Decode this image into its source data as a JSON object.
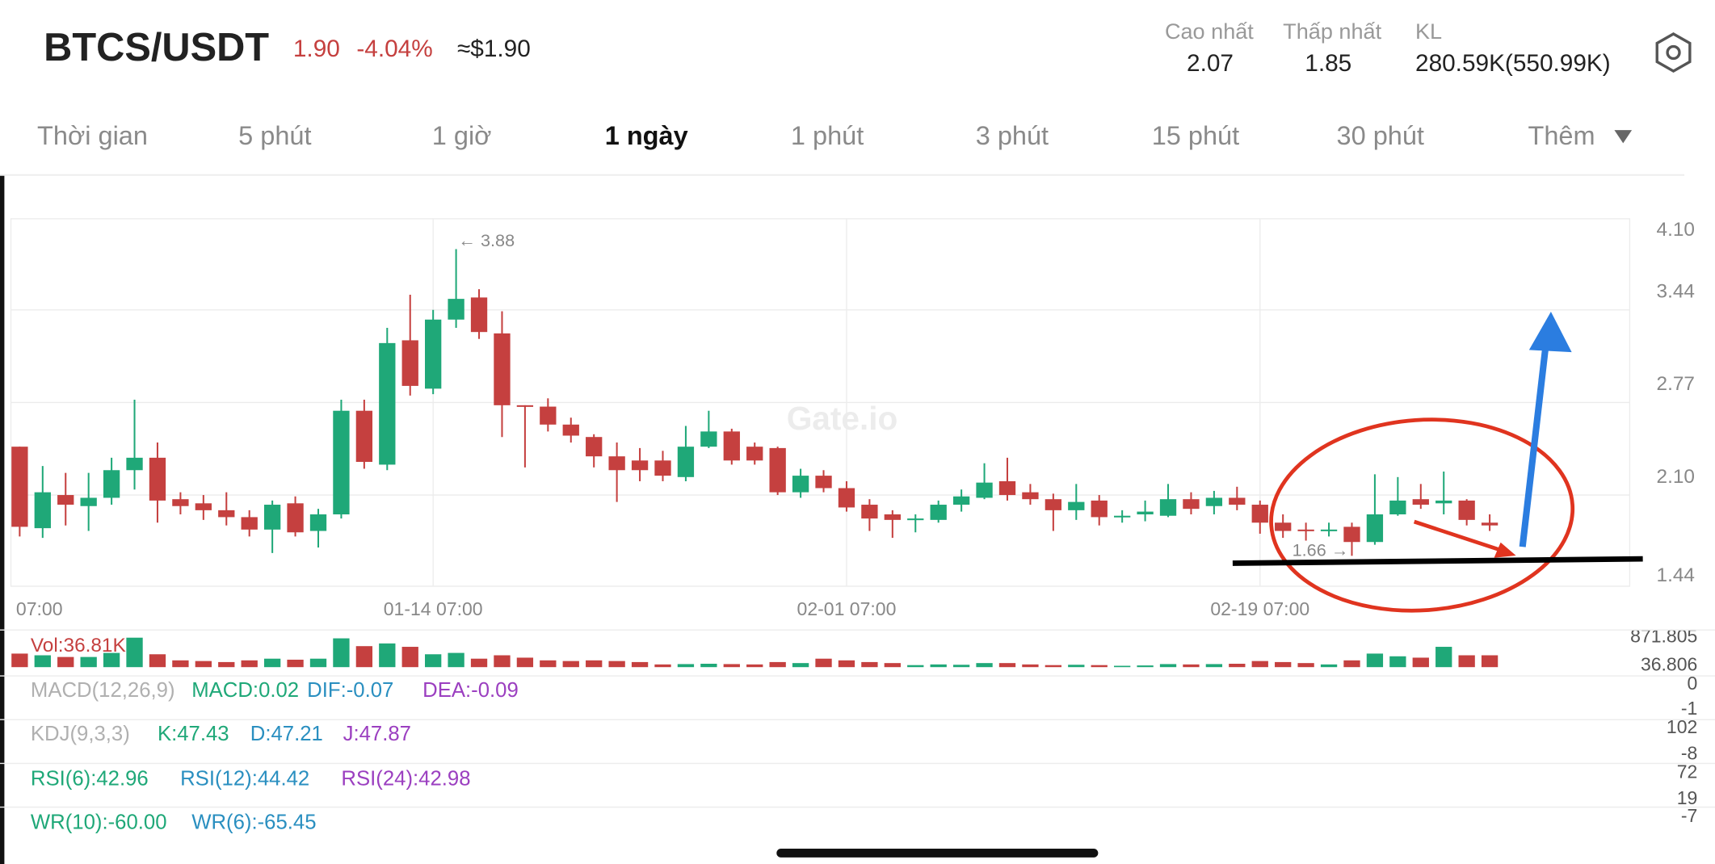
{
  "header": {
    "pair": "BTCS/USDT",
    "price": "1.90",
    "change": "-4.04%",
    "usd_price": "≈$1.90"
  },
  "stats": [
    {
      "label": "Cao nhất",
      "value": "2.07"
    },
    {
      "label": "Thấp nhất",
      "value": "1.85"
    },
    {
      "label": "KL",
      "value": "280.59K(550.99K)"
    }
  ],
  "tabs": [
    "Thời gian",
    "5 phút",
    "1 giờ",
    "1 ngày",
    "1 phút",
    "3 phút",
    "15 phút",
    "30 phút",
    "Thêm"
  ],
  "active_tab": 3,
  "watermark": "Gate.io",
  "chart_data": {
    "type": "candlestick",
    "up_color": "#1fa878",
    "down_color": "#c5403f",
    "categories": [
      "07:00",
      null,
      null,
      null,
      null,
      null,
      null,
      null,
      null,
      null,
      null,
      null,
      null,
      null,
      null,
      null,
      null,
      null,
      "01-14 07:00",
      null,
      null,
      null,
      null,
      null,
      null,
      null,
      null,
      null,
      null,
      null,
      null,
      null,
      null,
      null,
      null,
      null,
      "02-01 07:00",
      null,
      null,
      null,
      null,
      null,
      null,
      null,
      null,
      null,
      null,
      null,
      null,
      null,
      null,
      null,
      null,
      null,
      "02-19 07:00",
      null,
      null,
      null,
      null,
      null,
      null,
      null,
      null,
      null,
      null
    ],
    "open": [
      2.45,
      1.86,
      2.1,
      2.02,
      2.08,
      2.28,
      2.37,
      2.07,
      2.04,
      1.99,
      1.94,
      1.85,
      2.04,
      1.84,
      1.96,
      2.71,
      2.32,
      3.22,
      2.87,
      3.37,
      3.53,
      3.27,
      2.75,
      2.74,
      2.61,
      2.52,
      2.38,
      2.35,
      2.35,
      2.23,
      2.45,
      2.56,
      2.45,
      2.44,
      2.12,
      2.24,
      2.15,
      2.03,
      1.96,
      1.92,
      1.92,
      2.03,
      2.08,
      2.2,
      2.12,
      2.07,
      1.99,
      2.06,
      1.94,
      1.96,
      1.95,
      2.07,
      2.02,
      2.08,
      2.03,
      1.9,
      1.85,
      1.84,
      1.87,
      1.76,
      1.96,
      2.07,
      2.04,
      2.06,
      1.9
    ],
    "high": [
      2.45,
      2.31,
      2.26,
      2.26,
      2.37,
      2.79,
      2.48,
      2.12,
      2.1,
      2.12,
      1.99,
      2.06,
      2.09,
      2.0,
      2.79,
      2.79,
      3.31,
      3.55,
      3.44,
      3.88,
      3.59,
      3.43,
      2.75,
      2.8,
      2.66,
      2.54,
      2.48,
      2.44,
      2.42,
      2.6,
      2.71,
      2.58,
      2.48,
      2.45,
      2.29,
      2.28,
      2.2,
      2.07,
      1.99,
      1.96,
      2.06,
      2.14,
      2.33,
      2.37,
      2.18,
      2.11,
      2.18,
      2.1,
      1.99,
      2.06,
      2.18,
      2.12,
      2.13,
      2.16,
      2.06,
      1.96,
      1.9,
      1.9,
      1.9,
      2.25,
      2.23,
      2.18,
      2.27,
      2.07,
      1.96
    ],
    "low": [
      1.8,
      1.79,
      1.88,
      1.84,
      2.03,
      2.14,
      1.9,
      1.96,
      1.92,
      1.88,
      1.8,
      1.68,
      1.8,
      1.72,
      1.93,
      2.29,
      2.28,
      2.82,
      2.83,
      3.31,
      3.23,
      2.52,
      2.3,
      2.56,
      2.48,
      2.3,
      2.05,
      2.2,
      2.2,
      2.2,
      2.44,
      2.32,
      2.32,
      2.1,
      2.08,
      2.12,
      1.98,
      1.84,
      1.79,
      1.83,
      1.9,
      1.98,
      2.07,
      2.06,
      2.03,
      1.84,
      1.92,
      1.88,
      1.9,
      1.91,
      1.94,
      1.96,
      1.96,
      1.99,
      1.82,
      1.79,
      1.77,
      1.8,
      1.66,
      1.74,
      1.95,
      2.0,
      1.96,
      1.88,
      1.84
    ],
    "close": [
      1.87,
      2.12,
      2.03,
      2.08,
      2.28,
      2.37,
      2.06,
      2.02,
      1.99,
      1.94,
      1.85,
      2.03,
      1.83,
      1.96,
      2.71,
      2.34,
      3.2,
      2.89,
      3.37,
      3.52,
      3.28,
      2.75,
      2.74,
      2.61,
      2.53,
      2.38,
      2.28,
      2.28,
      2.24,
      2.45,
      2.56,
      2.35,
      2.35,
      2.12,
      2.24,
      2.15,
      2.01,
      1.93,
      1.92,
      1.93,
      2.03,
      2.09,
      2.19,
      2.1,
      2.07,
      1.99,
      2.05,
      1.94,
      1.95,
      1.98,
      2.07,
      2.0,
      2.08,
      2.03,
      1.9,
      1.84,
      1.84,
      1.85,
      1.76,
      1.96,
      2.06,
      2.03,
      2.06,
      1.92,
      1.88
    ],
    "ylim": [
      1.44,
      4.1
    ],
    "yticks": [
      {
        "value": 4.1,
        "label": "4.10"
      },
      3.44,
      2.77,
      {
        "value": 2.1,
        "label": "2.10"
      },
      1.44
    ],
    "grid": true,
    "annotations": [
      {
        "text": "← 3.88",
        "x": 19,
        "y": 3.88
      },
      {
        "text": "1.66 →",
        "x": 58,
        "y": 1.66
      }
    ],
    "volume": {
      "label": "Vol:36.81K",
      "values": [
        400,
        350,
        300,
        300,
        420,
        870,
        380,
        200,
        180,
        150,
        200,
        250,
        220,
        250,
        850,
        620,
        700,
        600,
        380,
        420,
        250,
        350,
        280,
        200,
        180,
        200,
        180,
        150,
        80,
        90,
        100,
        90,
        80,
        150,
        120,
        250,
        200,
        150,
        120,
        60,
        80,
        70,
        120,
        120,
        80,
        60,
        70,
        60,
        40,
        50,
        90,
        80,
        90,
        100,
        180,
        150,
        120,
        80,
        200,
        400,
        320,
        280,
        600,
        350,
        350
      ],
      "ylim": [
        0,
        871.805
      ],
      "yticks": [
        871.805,
        36.806
      ]
    }
  },
  "indicators": [
    {
      "labels": [
        {
          "text": "MACD(12,26,9)",
          "color": "#b0b0b0"
        },
        {
          "text": "MACD:0.02",
          "color": "#1fa878"
        },
        {
          "text": "DIF:-0.07",
          "color": "#2a8fc0"
        },
        {
          "text": "DEA:-0.09",
          "color": "#9b3fc0"
        }
      ],
      "axis": [
        "0",
        "-1"
      ]
    },
    {
      "labels": [
        {
          "text": "KDJ(9,3,3)",
          "color": "#b0b0b0"
        },
        {
          "text": "K:47.43",
          "color": "#1fa878"
        },
        {
          "text": "D:47.21",
          "color": "#2a8fc0"
        },
        {
          "text": "J:47.87",
          "color": "#9b3fc0"
        }
      ],
      "axis": [
        "102",
        "-8"
      ]
    },
    {
      "labels": [
        {
          "text": "RSI(6):42.96",
          "color": "#1fa878"
        },
        {
          "text": "RSI(12):44.42",
          "color": "#2a8fc0"
        },
        {
          "text": "RSI(24):42.98",
          "color": "#9b3fc0"
        }
      ],
      "axis": [
        "72",
        "19"
      ]
    },
    {
      "labels": [
        {
          "text": "WR(10):-60.00",
          "color": "#1fa878"
        },
        {
          "text": "WR(6):-65.45",
          "color": "#2a8fc0"
        }
      ],
      "axis": [
        "-7"
      ]
    }
  ]
}
